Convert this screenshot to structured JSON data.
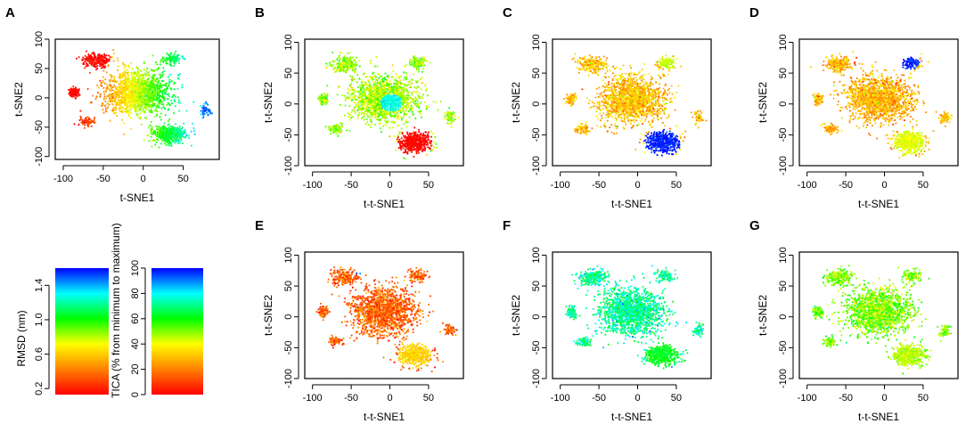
{
  "figure": {
    "colorbars": [
      {
        "label": "RMSD (nm)",
        "ticks": [
          "0.2",
          "0.6",
          "1.0",
          "1.4"
        ],
        "tick_values": [
          0.2,
          0.6,
          1.0,
          1.4
        ],
        "range": [
          0.13,
          1.6
        ]
      },
      {
        "label": "TICA (% from minimum to maximum)",
        "ticks": [
          "0",
          "20",
          "40",
          "60",
          "80",
          "100"
        ],
        "tick_values": [
          0,
          20,
          40,
          60,
          80,
          100
        ],
        "range": [
          0,
          100
        ]
      }
    ],
    "colormap": [
      "#ff0000",
      "#ff8000",
      "#ffff00",
      "#00ff00",
      "#00ffff",
      "#0000ff"
    ]
  },
  "chart_data": [
    {
      "type": "scatter",
      "panel": "A",
      "xlabel": "t-SNE1",
      "ylabel": "t-SNE2",
      "xlim": [
        -110,
        95
      ],
      "ylim": [
        -105,
        100
      ],
      "xticks": [
        "-100",
        "-50",
        "0",
        "50"
      ],
      "yticks": [
        "-100",
        "-50",
        "0",
        "50",
        "100"
      ],
      "xtick_values": [
        -100,
        -50,
        0,
        50
      ],
      "ytick_values": [
        -100,
        -50,
        0,
        50,
        100
      ],
      "color_by": "RMSD",
      "color_scheme": "gradient-x",
      "color_range": [
        0.0,
        0.92
      ],
      "highlight_regions": [
        {
          "name": "upper-left cluster",
          "center": [
            -62,
            68
          ],
          "radius": 22,
          "color_value": 0.0
        },
        {
          "name": "left cluster",
          "center": [
            -86,
            8
          ],
          "radius": 12,
          "color_value": 0.0
        },
        {
          "name": "right edge",
          "center": [
            80,
            -22
          ],
          "radius": 9,
          "color_value": 0.92
        }
      ]
    },
    {
      "type": "scatter",
      "panel": "B",
      "xlabel": "t-t-SNE1",
      "ylabel": "t-t-SNE2",
      "xlim": [
        -110,
        95
      ],
      "ylim": [
        -100,
        105
      ],
      "xticks": [
        "-100",
        "-50",
        "0",
        "50"
      ],
      "yticks": [
        "-100",
        "-50",
        "0",
        "50",
        "100"
      ],
      "xtick_values": [
        -100,
        -50,
        0,
        50
      ],
      "ytick_values": [
        -100,
        -50,
        0,
        50,
        100
      ],
      "color_by": "TICA",
      "color_scheme": "base-noise",
      "base_value": 0.47,
      "highlight_regions": [
        {
          "name": "lower-right cluster",
          "center": [
            33,
            -62
          ],
          "radius": 24,
          "color_value": 0.0
        },
        {
          "name": "dark blue patch",
          "center": [
            2,
            2
          ],
          "radius": 14,
          "color_value": 0.78
        }
      ]
    },
    {
      "type": "scatter",
      "panel": "C",
      "xlabel": "t-t-SNE1",
      "ylabel": "t-t-SNE2",
      "xlim": [
        -110,
        95
      ],
      "ylim": [
        -100,
        105
      ],
      "xticks": [
        "-100",
        "-50",
        "0",
        "50"
      ],
      "yticks": [
        "-100",
        "-50",
        "0",
        "50",
        "100"
      ],
      "xtick_values": [
        -100,
        -50,
        0,
        50
      ],
      "ytick_values": [
        -100,
        -50,
        0,
        50,
        100
      ],
      "color_by": "TICA",
      "color_scheme": "base-noise",
      "base_value": 0.3,
      "highlight_regions": [
        {
          "name": "lower-right cluster",
          "center": [
            32,
            -62
          ],
          "radius": 24,
          "color_value": 0.98
        },
        {
          "name": "upper-right cluster",
          "center": [
            38,
            68
          ],
          "radius": 12,
          "color_value": 0.44
        }
      ]
    },
    {
      "type": "scatter",
      "panel": "D",
      "xlabel": "t-t-SNE1",
      "ylabel": "t-t-SNE2",
      "xlim": [
        -110,
        95
      ],
      "ylim": [
        -100,
        105
      ],
      "xticks": [
        "-100",
        "-50",
        "0",
        "50"
      ],
      "yticks": [
        "-100",
        "-50",
        "0",
        "50",
        "100"
      ],
      "xtick_values": [
        -100,
        -50,
        0,
        50
      ],
      "ytick_values": [
        -100,
        -50,
        0,
        50,
        100
      ],
      "color_by": "TICA",
      "color_scheme": "base-noise",
      "base_value": 0.28,
      "highlight_regions": [
        {
          "name": "upper-right cluster",
          "center": [
            30,
            70
          ],
          "radius": 16,
          "color_value": 0.98
        },
        {
          "name": "lower-right cluster",
          "center": [
            32,
            -62
          ],
          "radius": 22,
          "color_value": 0.42
        },
        {
          "name": "upper-left dot",
          "center": [
            -38,
            72
          ],
          "radius": 7,
          "color_value": 0.05
        }
      ]
    },
    {
      "type": "scatter",
      "panel": "E",
      "xlabel": "t-t-SNE1",
      "ylabel": "t-t-SNE2",
      "xlim": [
        -110,
        95
      ],
      "ylim": [
        -100,
        105
      ],
      "xticks": [
        "-100",
        "-50",
        "0",
        "50"
      ],
      "yticks": [
        "-100",
        "-50",
        "0",
        "50",
        "100"
      ],
      "xtick_values": [
        -100,
        -50,
        0,
        50
      ],
      "ytick_values": [
        -100,
        -50,
        0,
        50,
        100
      ],
      "color_by": "TICA",
      "color_scheme": "base-noise",
      "base_value": 0.15,
      "highlight_regions": [
        {
          "name": "lower-right cluster",
          "center": [
            32,
            -62
          ],
          "radius": 22,
          "color_value": 0.33
        },
        {
          "name": "upper-left dot",
          "center": [
            -38,
            72
          ],
          "radius": 6,
          "color_value": 0.95
        }
      ]
    },
    {
      "type": "scatter",
      "panel": "F",
      "xlabel": "t-t-SNE1",
      "ylabel": "t-t-SNE2",
      "xlim": [
        -110,
        95
      ],
      "ylim": [
        -100,
        105
      ],
      "xticks": [
        "-100",
        "-50",
        "0",
        "50"
      ],
      "yticks": [
        "-100",
        "-50",
        "0",
        "50",
        "100"
      ],
      "xtick_values": [
        -100,
        -50,
        0,
        50
      ],
      "ytick_values": [
        -100,
        -50,
        0,
        50,
        100
      ],
      "color_by": "TICA",
      "color_scheme": "base-noise",
      "base_value": 0.72,
      "highlight_regions": [
        {
          "name": "lower-right cluster",
          "center": [
            32,
            -62
          ],
          "radius": 22,
          "color_value": 0.62
        },
        {
          "name": "left orange dot",
          "center": [
            -80,
            35
          ],
          "radius": 5,
          "color_value": 0.12
        }
      ]
    },
    {
      "type": "scatter",
      "panel": "G",
      "xlabel": "t-t-SNE1",
      "ylabel": "t-t-SNE2",
      "xlim": [
        -110,
        95
      ],
      "ylim": [
        -100,
        105
      ],
      "xticks": [
        "-100",
        "-50",
        "0",
        "50"
      ],
      "yticks": [
        "-100",
        "-50",
        "0",
        "50",
        "100"
      ],
      "xtick_values": [
        -100,
        -50,
        0,
        50
      ],
      "ytick_values": [
        -100,
        -50,
        0,
        50,
        100
      ],
      "color_by": "TICA",
      "color_scheme": "base-noise",
      "base_value": 0.5,
      "highlight_regions": [
        {
          "name": "lower-right cluster",
          "center": [
            32,
            -62
          ],
          "radius": 22,
          "color_value": 0.46
        },
        {
          "name": "orange patch",
          "center": [
            -22,
            -58
          ],
          "radius": 8,
          "color_value": 0.12
        },
        {
          "name": "top blue dot",
          "center": [
            18,
            85
          ],
          "radius": 5,
          "color_value": 0.98
        }
      ]
    }
  ]
}
